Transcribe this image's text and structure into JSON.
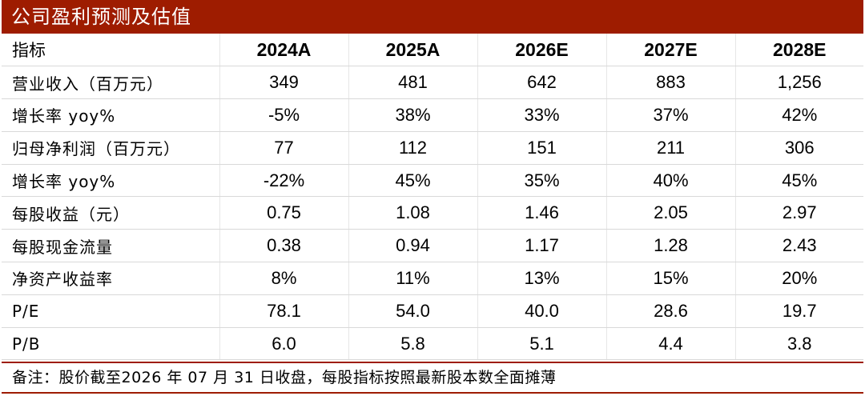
{
  "title": "公司盈利预测及估值",
  "table": {
    "label_header": "指标",
    "years": [
      "2024A",
      "2025A",
      "2026E",
      "2027E",
      "2028E"
    ],
    "rows": [
      {
        "label": "营业收入（百万元）",
        "values": [
          "349",
          "481",
          "642",
          "883",
          "1,256"
        ]
      },
      {
        "label": "增长率 yoy%",
        "values": [
          "-5%",
          "38%",
          "33%",
          "37%",
          "42%"
        ]
      },
      {
        "label": "归母净利润（百万元）",
        "values": [
          "77",
          "112",
          "151",
          "211",
          "306"
        ]
      },
      {
        "label": "增长率 yoy%",
        "values": [
          "-22%",
          "45%",
          "35%",
          "40%",
          "45%"
        ]
      },
      {
        "label": "每股收益（元）",
        "values": [
          "0.75",
          "1.08",
          "1.46",
          "2.05",
          "2.97"
        ]
      },
      {
        "label": "每股现金流量",
        "values": [
          "0.38",
          "0.94",
          "1.17",
          "1.28",
          "2.43"
        ]
      },
      {
        "label": "净资产收益率",
        "values": [
          "8%",
          "11%",
          "13%",
          "15%",
          "20%"
        ]
      },
      {
        "label": "P/E",
        "values": [
          "78.1",
          "54.0",
          "40.0",
          "28.6",
          "19.7"
        ]
      },
      {
        "label": "P/B",
        "values": [
          "6.0",
          "5.8",
          "5.1",
          "4.4",
          "3.8"
        ]
      }
    ]
  },
  "footnote": "备注：股价截至2026 年 07 月 31 日收盘，每股指标按照最新股本数全面摊薄",
  "colors": {
    "accent": "#9e1c00"
  }
}
